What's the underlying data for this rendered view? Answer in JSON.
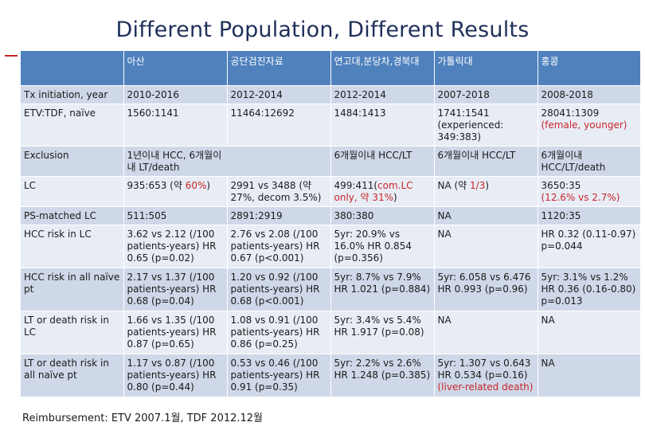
{
  "title": "Different Population, Different Results",
  "header": [
    "",
    "아산",
    "공단검진자료",
    "연고대,분당차,경북대",
    "가톨릭대",
    "홍콩"
  ],
  "rows": {
    "tx": [
      "Tx initiation, year",
      "2010-2016",
      "2012-2014",
      "2012-2014",
      "2007-2018",
      "2008-2018"
    ],
    "etv": [
      "ETV:TDF, naïve",
      "1560:1141",
      "11464:12692",
      "1484:1413",
      "1741:1541 (experienced: 349:383)",
      "28041:1309"
    ],
    "etv_hk_note": "(female, younger)",
    "exclusion": {
      "label": "Exclusion",
      "asan_sms": "1년이내 HCC, 6개월이내 LT/death",
      "yonsei": "6개월이내 HCC/LT",
      "catholic": "6개월이내 HCC/LT",
      "hk": "6개월이내 HCC/LT/death"
    },
    "lc": {
      "label": "LC",
      "asan_pre": "935:653 (약 ",
      "asan_red": "60%",
      "asan_post": ")",
      "nhis": "2991 vs 3488 (약 27%, decom 3.5%)",
      "yonsei_pre": "499:411(",
      "yonsei_red": "com.LC only, 약 31%",
      "yonsei_post": ")",
      "catholic_pre": "NA (약 ",
      "catholic_red": "1/3",
      "catholic_post": ")",
      "hk_pre": "3650:35",
      "hk_red": "(12.6% vs 2.7%)"
    },
    "psm": [
      "PS-matched LC",
      "511:505",
      "2891:2919",
      "380:380",
      "NA",
      "1120:35"
    ],
    "hcc_lc": [
      "HCC risk in LC",
      "3.62 vs 2.12 (/100 patients-years) HR 0.65 (p=0.02)",
      "2.76 vs 2.08 (/100 patients-years) HR 0.67 (p<0.001)",
      "5yr: 20.9% vs 16.0% HR 0.854 (p=0.356)",
      "NA",
      "HR 0.32 (0.11-0.97) p=0.044"
    ],
    "hcc_all": [
      "HCC risk in all naïve pt",
      "2.17 vs 1.37 (/100 patients-years) HR 0.68 (p=0.04)",
      "1.20 vs 0.92 (/100 patients-years) HR 0.68 (p<0.001)",
      "5yr: 8.7% vs 7.9% HR 1.021 (p=0.884)",
      "5yr: 6.058 vs 6.476 HR 0.993 (p=0.96)",
      "5yr: 3.1% vs 1.2% HR 0.36 (0.16-0.80) p=0.013"
    ],
    "lt_lc": [
      "LT or death risk in LC",
      "1.66 vs 1.35 (/100 patients-years) HR 0.87 (p=0.65)",
      "1.08 vs 0.91 (/100 patients-years) HR 0.86 (p=0.25)",
      "5yr: 3.4% vs 5.4% HR 1.917 (p=0.08)",
      "NA",
      "NA"
    ],
    "lt_all": [
      "LT or death risk in all naïve pt",
      "1.17 vs 0.87 (/100 patients-years) HR 0.80 (p=0.44)",
      "0.53 vs 0.46 (/100 patients-years) HR 0.91 (p=0.35)",
      "5yr: 2.2% vs 2.6% HR 1.248 (p=0.385)",
      "5yr: 1.307 vs 0.643 HR 0.534 (p=0.16)",
      "NA"
    ],
    "lt_all_catholic_note": "(liver-related death)"
  },
  "footnote": "Reimbursement: ETV 2007.1월, TDF 2012.12월",
  "colors": {
    "header_bg": "#4f81bd",
    "row_dark": "#cfd8e8",
    "row_light": "#e8edf5",
    "accent_red": "#c9252c",
    "title": "#1f2f5a"
  }
}
